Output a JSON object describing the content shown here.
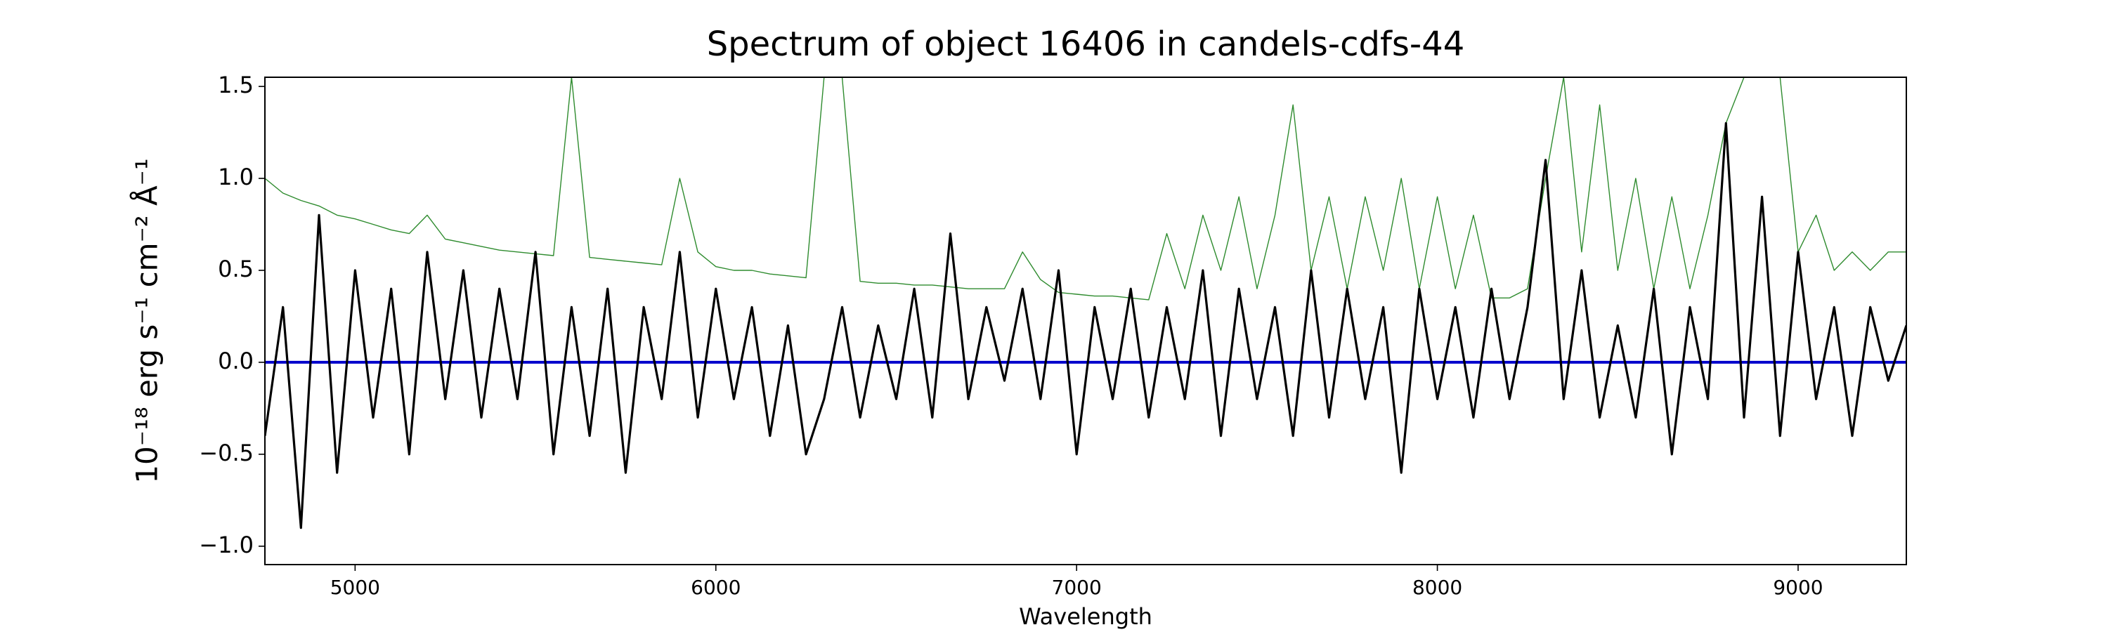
{
  "chart_data": {
    "type": "line",
    "title": "Spectrum of object 16406 in candels-cdfs-44",
    "xlabel": "Wavelength",
    "ylabel": "10⁻¹⁸ erg s⁻¹ cm⁻² Å⁻¹",
    "x": [
      4750,
      4800,
      4850,
      4900,
      4950,
      5000,
      5050,
      5100,
      5150,
      5200,
      5250,
      5300,
      5350,
      5400,
      5450,
      5500,
      5550,
      5600,
      5650,
      5700,
      5750,
      5800,
      5850,
      5900,
      5950,
      6000,
      6050,
      6100,
      6150,
      6200,
      6250,
      6300,
      6350,
      6400,
      6450,
      6500,
      6550,
      6600,
      6650,
      6700,
      6750,
      6800,
      6850,
      6900,
      6950,
      7000,
      7050,
      7100,
      7150,
      7200,
      7250,
      7300,
      7350,
      7400,
      7450,
      7500,
      7550,
      7600,
      7650,
      7700,
      7750,
      7800,
      7850,
      7900,
      7950,
      8000,
      8050,
      8100,
      8150,
      8200,
      8250,
      8300,
      8350,
      8400,
      8450,
      8500,
      8550,
      8600,
      8650,
      8700,
      8750,
      8800,
      8850,
      8900,
      8950,
      9000,
      9050,
      9100,
      9150,
      9200,
      9250,
      9300
    ],
    "series": [
      {
        "color": "#2e8b2e",
        "values": [
          1.0,
          0.92,
          0.88,
          0.85,
          0.8,
          0.78,
          0.75,
          0.72,
          0.7,
          0.8,
          0.67,
          0.65,
          0.63,
          0.61,
          0.6,
          0.59,
          0.58,
          1.55,
          0.57,
          0.56,
          0.55,
          0.54,
          0.53,
          1.0,
          0.6,
          0.52,
          0.5,
          0.5,
          0.48,
          0.47,
          0.46,
          1.55,
          1.55,
          0.44,
          0.43,
          0.43,
          0.42,
          0.42,
          0.41,
          0.4,
          0.4,
          0.4,
          0.6,
          0.45,
          0.38,
          0.37,
          0.36,
          0.36,
          0.35,
          0.34,
          0.7,
          0.4,
          0.8,
          0.5,
          0.9,
          0.4,
          0.8,
          1.4,
          0.5,
          0.9,
          0.4,
          0.9,
          0.5,
          1.0,
          0.4,
          0.9,
          0.4,
          0.8,
          0.35,
          0.35,
          0.4,
          1.0,
          1.55,
          0.6,
          1.4,
          0.5,
          1.0,
          0.4,
          0.9,
          0.4,
          0.8,
          1.3,
          1.55,
          1.55,
          1.55,
          0.6,
          0.8,
          0.5,
          0.6,
          0.5,
          0.6,
          0.6
        ]
      },
      {
        "color": "#0000cc",
        "values": [
          0,
          0,
          0,
          0,
          0,
          0,
          0,
          0,
          0,
          0,
          0,
          0,
          0,
          0,
          0,
          0,
          0,
          0,
          0,
          0,
          0,
          0,
          0,
          0,
          0,
          0,
          0,
          0,
          0,
          0,
          0,
          0,
          0,
          0,
          0,
          0,
          0,
          0,
          0,
          0,
          0,
          0,
          0,
          0,
          0,
          0,
          0,
          0,
          0,
          0,
          0,
          0,
          0,
          0,
          0,
          0,
          0,
          0,
          0,
          0,
          0,
          0,
          0,
          0,
          0,
          0,
          0,
          0,
          0,
          0,
          0,
          0,
          0,
          0,
          0,
          0,
          0,
          0,
          0,
          0,
          0,
          0,
          0,
          0,
          0,
          0,
          0,
          0,
          0,
          0,
          0,
          0
        ]
      },
      {
        "color": "#000000",
        "values": [
          -0.4,
          0.3,
          -0.9,
          0.8,
          -0.6,
          0.5,
          -0.3,
          0.4,
          -0.5,
          0.6,
          -0.2,
          0.5,
          -0.3,
          0.4,
          -0.2,
          0.6,
          -0.5,
          0.3,
          -0.4,
          0.4,
          -0.6,
          0.3,
          -0.2,
          0.6,
          -0.3,
          0.4,
          -0.2,
          0.3,
          -0.4,
          0.2,
          -0.5,
          -0.2,
          0.3,
          -0.3,
          0.2,
          -0.2,
          0.4,
          -0.3,
          0.7,
          -0.2,
          0.3,
          -0.1,
          0.4,
          -0.2,
          0.5,
          -0.5,
          0.3,
          -0.2,
          0.4,
          -0.3,
          0.3,
          -0.2,
          0.5,
          -0.4,
          0.4,
          -0.2,
          0.3,
          -0.4,
          0.5,
          -0.3,
          0.4,
          -0.2,
          0.3,
          -0.6,
          0.4,
          -0.2,
          0.3,
          -0.3,
          0.4,
          -0.2,
          0.3,
          1.1,
          -0.2,
          0.5,
          -0.3,
          0.2,
          -0.3,
          0.4,
          -0.5,
          0.3,
          -0.2,
          1.3,
          -0.3,
          0.9,
          -0.4,
          0.6,
          -0.2,
          0.3,
          -0.4,
          0.3,
          -0.1,
          0.2
        ]
      }
    ],
    "xlim": [
      4750,
      9300
    ],
    "ylim": [
      -1.1,
      1.55
    ],
    "xticks": [
      5000,
      6000,
      7000,
      8000,
      9000
    ],
    "yticks": [
      {
        "value": -1.0,
        "label": "−1.0"
      },
      {
        "value": -0.5,
        "label": "−0.5"
      },
      {
        "value": 0.0,
        "label": "0.0"
      },
      {
        "value": 0.5,
        "label": "0.5"
      },
      {
        "value": 1.0,
        "label": "1.0"
      },
      {
        "value": 1.5,
        "label": "1.5"
      }
    ],
    "grid": false
  }
}
